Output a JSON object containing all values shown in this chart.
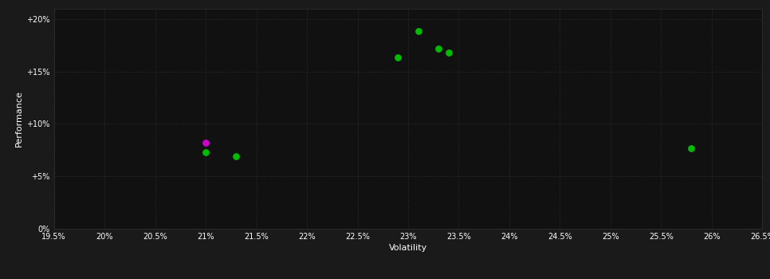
{
  "background_color": "#1a1a1a",
  "plot_bg_color": "#111111",
  "grid_color": "#333333",
  "text_color": "#ffffff",
  "xlabel": "Volatility",
  "ylabel": "Performance",
  "xlim": [
    0.195,
    0.265
  ],
  "ylim": [
    0.0,
    0.21
  ],
  "xticks": [
    0.195,
    0.2,
    0.205,
    0.21,
    0.215,
    0.22,
    0.225,
    0.23,
    0.235,
    0.24,
    0.245,
    0.25,
    0.255,
    0.26,
    0.265
  ],
  "yticks": [
    0.0,
    0.05,
    0.1,
    0.15,
    0.2
  ],
  "ytick_labels": [
    "0%",
    "+5%",
    "+10%",
    "+15%",
    "+20%"
  ],
  "xtick_labels": [
    "19.5%",
    "20%",
    "20.5%",
    "21%",
    "21.5%",
    "22%",
    "22.5%",
    "23%",
    "23.5%",
    "24%",
    "24.5%",
    "25%",
    "25.5%",
    "26%",
    "26.5%"
  ],
  "green_points": [
    [
      0.231,
      0.188
    ],
    [
      0.233,
      0.172
    ],
    [
      0.234,
      0.168
    ],
    [
      0.229,
      0.163
    ],
    [
      0.21,
      0.073
    ],
    [
      0.213,
      0.069
    ],
    [
      0.258,
      0.077
    ]
  ],
  "magenta_points": [
    [
      0.21,
      0.082
    ]
  ],
  "point_size": 28,
  "green_color": "#00bb00",
  "magenta_color": "#cc00cc"
}
